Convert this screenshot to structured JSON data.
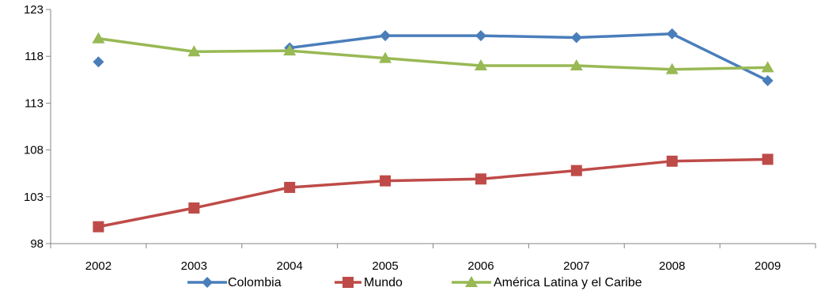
{
  "chart_data": {
    "type": "line",
    "title": "",
    "xlabel": "",
    "ylabel": "",
    "categories": [
      "2002",
      "2003",
      "2004",
      "2005",
      "2006",
      "2007",
      "2008",
      "2009"
    ],
    "ylim": [
      98,
      123
    ],
    "yticks": [
      98,
      103,
      108,
      113,
      118,
      123
    ],
    "grid": false,
    "legend_position": "bottom",
    "series": [
      {
        "name": "Colombia",
        "color": "#4a7ebb",
        "marker": "diamond",
        "values": [
          117.4,
          null,
          118.9,
          120.2,
          120.2,
          120.0,
          120.4,
          115.4
        ]
      },
      {
        "name": "Mundo",
        "color": "#be4b48",
        "marker": "square",
        "values": [
          99.8,
          101.8,
          104.0,
          104.7,
          104.9,
          105.8,
          106.8,
          107.0
        ]
      },
      {
        "name": "América Latina y el Caribe",
        "color": "#98b954",
        "marker": "triangle",
        "values": [
          119.9,
          118.5,
          118.6,
          117.8,
          117.0,
          117.0,
          116.6,
          116.8
        ]
      }
    ]
  }
}
